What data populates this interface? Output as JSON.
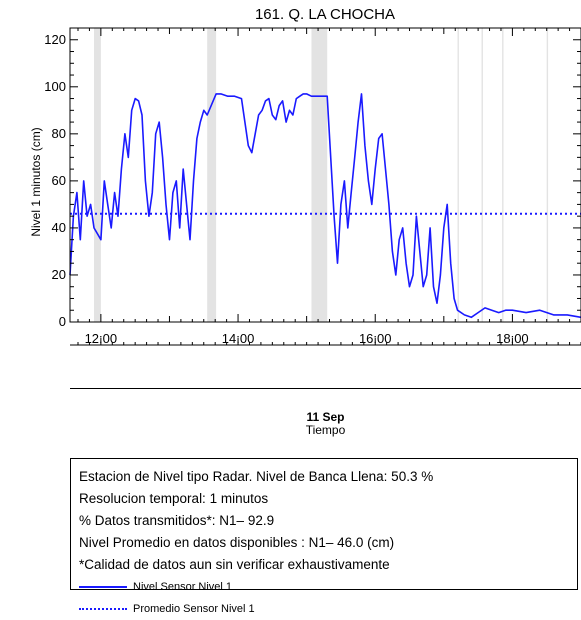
{
  "chart_data": {
    "type": "line",
    "title": "161. Q. LA CHOCHA",
    "ylabel": "Nivel 1 minutos (cm)",
    "xlabel": "Tiempo",
    "date_label": "11 Sep",
    "ylim": [
      0,
      125
    ],
    "yticks": [
      0,
      20,
      40,
      60,
      80,
      100,
      120
    ],
    "xlim": [
      11.55,
      19.0
    ],
    "xticks": [
      {
        "value": 12,
        "label": "12:00"
      },
      {
        "value": 14,
        "label": "14:00"
      },
      {
        "value": 16,
        "label": "16:00"
      },
      {
        "value": 18,
        "label": "18:00"
      }
    ],
    "grid": false,
    "gaps": [
      {
        "start": 11.9,
        "end": 12.0
      },
      {
        "start": 13.55,
        "end": 13.68
      },
      {
        "start": 15.07,
        "end": 15.3
      },
      {
        "start": 17.2,
        "end": 17.22
      },
      {
        "start": 17.55,
        "end": 17.57
      },
      {
        "start": 17.85,
        "end": 17.87
      },
      {
        "start": 18.5,
        "end": 18.52
      }
    ],
    "series": [
      {
        "name": "Nivel Sensor Nivel 1",
        "style": "solid",
        "color": "#1a1aff",
        "x": [
          11.55,
          11.6,
          11.65,
          11.7,
          11.75,
          11.8,
          11.85,
          11.9,
          12.0,
          12.05,
          12.1,
          12.15,
          12.2,
          12.25,
          12.3,
          12.35,
          12.4,
          12.45,
          12.5,
          12.55,
          12.6,
          12.65,
          12.7,
          12.75,
          12.8,
          12.85,
          12.9,
          12.95,
          13.0,
          13.05,
          13.1,
          13.15,
          13.2,
          13.25,
          13.3,
          13.35,
          13.4,
          13.45,
          13.5,
          13.55,
          13.68,
          13.75,
          13.85,
          13.95,
          14.05,
          14.1,
          14.15,
          14.2,
          14.25,
          14.3,
          14.35,
          14.4,
          14.45,
          14.5,
          14.55,
          14.6,
          14.65,
          14.7,
          14.75,
          14.8,
          14.85,
          14.9,
          14.95,
          15.0,
          15.07,
          15.3,
          15.4,
          15.45,
          15.5,
          15.55,
          15.6,
          15.65,
          15.7,
          15.75,
          15.8,
          15.85,
          15.9,
          15.95,
          16.0,
          16.05,
          16.1,
          16.15,
          16.2,
          16.25,
          16.3,
          16.35,
          16.4,
          16.45,
          16.5,
          16.55,
          16.6,
          16.65,
          16.7,
          16.75,
          16.8,
          16.85,
          16.9,
          16.95,
          17.0,
          17.05,
          17.1,
          17.15,
          17.2,
          17.3,
          17.4,
          17.5,
          17.6,
          17.7,
          17.8,
          17.9,
          18.0,
          18.2,
          18.4,
          18.6,
          18.8,
          19.0
        ],
        "y": [
          20,
          45,
          55,
          35,
          60,
          45,
          50,
          40,
          35,
          60,
          50,
          40,
          55,
          45,
          65,
          80,
          70,
          90,
          95,
          94,
          88,
          60,
          45,
          55,
          80,
          85,
          70,
          50,
          35,
          55,
          60,
          40,
          65,
          50,
          35,
          60,
          78,
          85,
          90,
          88,
          97,
          97,
          96,
          96,
          95,
          85,
          75,
          72,
          80,
          88,
          90,
          94,
          95,
          88,
          86,
          92,
          94,
          85,
          90,
          88,
          95,
          96,
          97,
          97,
          96,
          96,
          45,
          25,
          50,
          60,
          40,
          55,
          70,
          85,
          97,
          75,
          60,
          50,
          65,
          78,
          80,
          65,
          50,
          30,
          20,
          35,
          40,
          25,
          15,
          20,
          45,
          30,
          15,
          20,
          40,
          15,
          8,
          20,
          40,
          50,
          25,
          10,
          5,
          3,
          2,
          4,
          6,
          5,
          4,
          5,
          5,
          4,
          5,
          3,
          3,
          2
        ]
      },
      {
        "name": "Promedio Sensor Nivel 1",
        "style": "dotted",
        "color": "#1a1aff",
        "x": [
          11.55,
          19.0
        ],
        "y": [
          46,
          46
        ]
      }
    ]
  },
  "info": {
    "lines": [
      "Estacion de Nivel tipo Radar. Nivel de Banca Llena: 50.3 %",
      "Resolucion temporal: 1 minutos",
      "% Datos transmitidos*: N1– 92.9",
      "Nivel Promedio en datos disponibles : N1– 46.0 (cm)",
      "*Calidad de datos aun sin verificar exhaustivamente"
    ],
    "legend": [
      {
        "label": "Nivel Sensor Nivel 1"
      },
      {
        "label": "Promedio Sensor Nivel 1"
      }
    ]
  }
}
